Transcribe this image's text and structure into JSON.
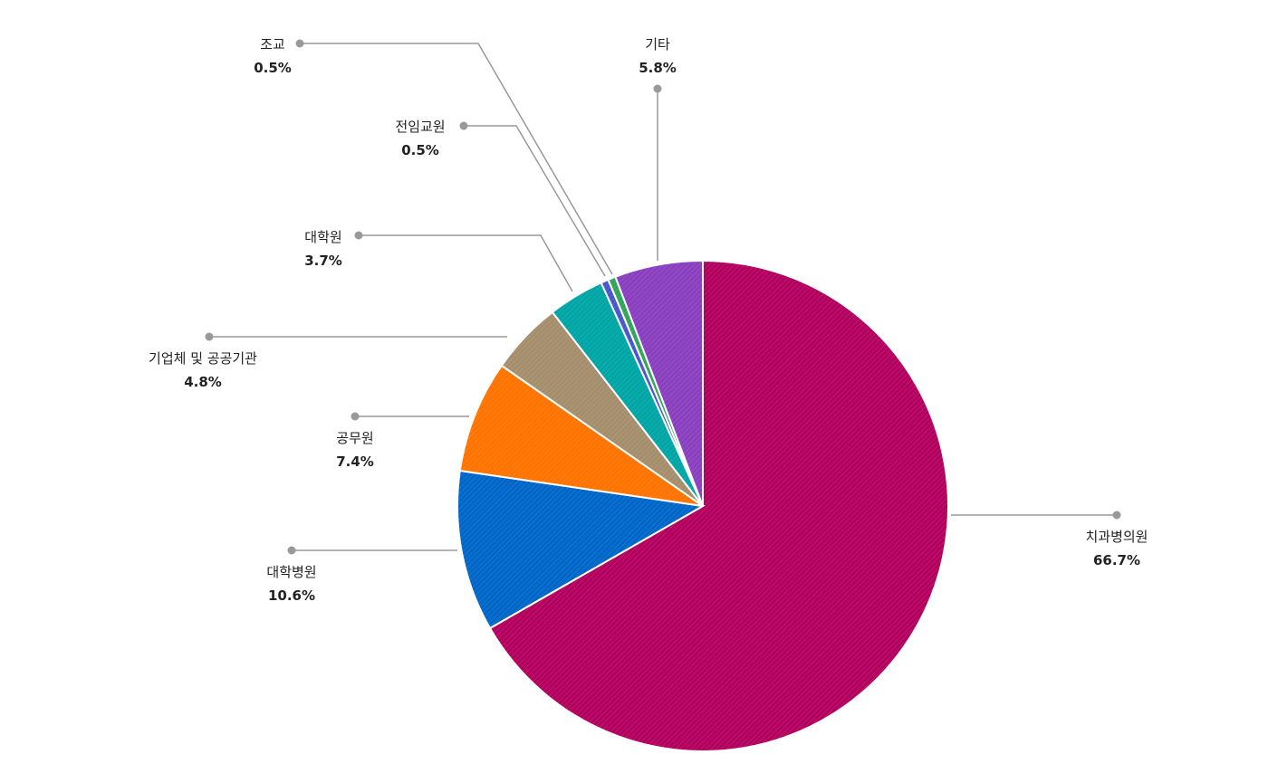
{
  "chart_data": {
    "type": "pie",
    "start_angle": "12 o'clock",
    "direction": "clockwise",
    "legend": "none",
    "slices": [
      {
        "label": "치과병의원",
        "value": 66.7,
        "value_label": "66.7%",
        "color": "#b3005e"
      },
      {
        "label": "대학병원",
        "value": 10.6,
        "value_label": "10.6%",
        "color": "#0066c8"
      },
      {
        "label": "공무원",
        "value": 7.4,
        "value_label": "7.4%",
        "color": "#ff7300"
      },
      {
        "label": "기업체 및 공공기관",
        "value": 4.8,
        "value_label": "4.8%",
        "color": "#a58e6c"
      },
      {
        "label": "대학원",
        "value": 3.7,
        "value_label": "3.7%",
        "color": "#00a5a5"
      },
      {
        "label": "전임교원",
        "value": 0.5,
        "value_label": "0.5%",
        "color": "#4756cc"
      },
      {
        "label": "조교",
        "value": 0.5,
        "value_label": "0.5%",
        "color": "#2fa55a"
      },
      {
        "label": "기타",
        "value": 5.8,
        "value_label": "5.8%",
        "color": "#8a3fbf"
      }
    ]
  }
}
